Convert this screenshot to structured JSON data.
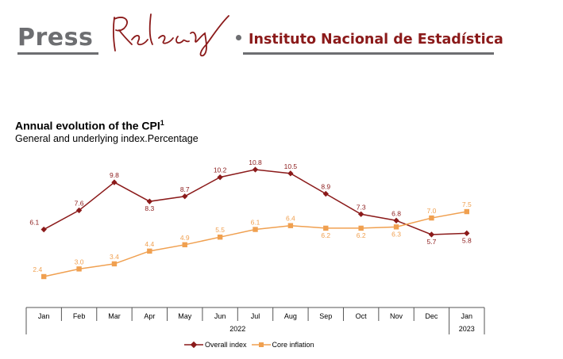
{
  "header": {
    "press_label": "Press",
    "release_label": "Release",
    "organization": "Instituto Nacional de Estadística"
  },
  "colors": {
    "overall": "#8b1a1a",
    "core": "#f0a050",
    "axis": "#555555"
  },
  "chart_data": {
    "type": "line",
    "title": "Annual evolution of the CPI",
    "title_footnote": "1",
    "subtitle": "General and underlying index.Percentage",
    "categories": [
      "Jan",
      "Feb",
      "Mar",
      "Apr",
      "May",
      "Jun",
      "Jul",
      "Aug",
      "Sep",
      "Oct",
      "Nov",
      "Dec",
      "Jan"
    ],
    "year_groups": [
      {
        "label": "2022",
        "start": 0,
        "end": 11
      },
      {
        "label": "2023",
        "start": 12,
        "end": 12
      }
    ],
    "series": [
      {
        "name": "Overall index",
        "values": [
          6.1,
          7.6,
          9.8,
          8.3,
          8.7,
          10.2,
          10.8,
          10.5,
          8.9,
          7.3,
          6.8,
          5.7,
          5.8
        ]
      },
      {
        "name": "Core inflation",
        "values": [
          2.4,
          3.0,
          3.4,
          4.4,
          4.9,
          5.5,
          6.1,
          6.4,
          6.2,
          6.2,
          6.3,
          7.0,
          7.5
        ]
      }
    ],
    "legend_position": "bottom",
    "grid": false
  }
}
